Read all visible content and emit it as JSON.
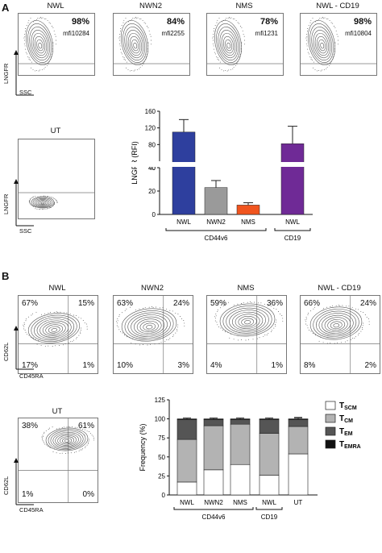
{
  "panel_a": {
    "letter": "A",
    "plots": [
      {
        "title": "NWL",
        "percent": "98%",
        "mfi": "mfi10284"
      },
      {
        "title": "NWN2",
        "percent": "84%",
        "mfi": "mfi2255"
      },
      {
        "title": "NMS",
        "percent": "78%",
        "mfi": "mfi1231"
      },
      {
        "title": "NWL - CD19",
        "percent": "98%",
        "mfi": "mfi10804"
      }
    ],
    "ut_title": "UT",
    "y_axis": "LNGFR",
    "x_axis": "SSC"
  },
  "panel_b": {
    "letter": "B",
    "plots": [
      {
        "title": "NWL",
        "q_ul": "67%",
        "q_ur": "15%",
        "q_ll": "17%",
        "q_lr": "1%"
      },
      {
        "title": "NWN2",
        "q_ul": "63%",
        "q_ur": "24%",
        "q_ll": "10%",
        "q_lr": "3%"
      },
      {
        "title": "NMS",
        "q_ul": "59%",
        "q_ur": "36%",
        "q_ll": "4%",
        "q_lr": "1%"
      },
      {
        "title": "NWL - CD19",
        "q_ul": "66%",
        "q_ur": "24%",
        "q_ll": "8%",
        "q_lr": "2%"
      }
    ],
    "ut": {
      "title": "UT",
      "q_ul": "38%",
      "q_ur": "61%",
      "q_ll": "1%",
      "q_lr": "0%"
    },
    "y_axis": "CD62L",
    "x_axis": "CD45RA"
  },
  "chart_data": [
    {
      "type": "bar",
      "ylabel": "LNGFR (RFI)",
      "categories": [
        "NWL",
        "NWN2",
        "NMS",
        "NWL"
      ],
      "values": [
        110,
        23,
        8,
        82
      ],
      "errors": [
        30,
        6,
        2,
        42
      ],
      "colors": [
        "#2e3f9e",
        "#9a9a9a",
        "#f0541e",
        "#6f2a96"
      ],
      "y_ticks_lower": [
        0,
        20,
        40
      ],
      "y_ticks_upper": [
        40,
        80,
        120,
        160
      ],
      "axis_break": [
        40,
        50
      ],
      "groups": [
        {
          "label": "CD44v6",
          "members": [
            0,
            1,
            2
          ]
        },
        {
          "label": "CD19",
          "members": [
            3
          ]
        }
      ]
    },
    {
      "type": "bar",
      "stacked": true,
      "ylabel": "Frequency (%)",
      "ylim": [
        0,
        125
      ],
      "y_ticks": [
        0,
        25,
        50,
        75,
        100,
        125
      ],
      "categories": [
        "NWL",
        "NWN2",
        "NMS",
        "NWL",
        "UT"
      ],
      "series": [
        {
          "name": "T",
          "sub": "SCM",
          "color": "#ffffff",
          "values": [
            17,
            33,
            40,
            26,
            54
          ],
          "errors": [
            2,
            3,
            6,
            4,
            3
          ]
        },
        {
          "name": "T",
          "sub": "CM",
          "color": "#b3b3b3",
          "values": [
            56,
            58,
            53,
            55,
            36
          ],
          "errors": [
            2,
            2,
            2,
            3,
            2
          ]
        },
        {
          "name": "T",
          "sub": "EM",
          "color": "#555555",
          "values": [
            26,
            8,
            6,
            18,
            9
          ],
          "errors": [
            2,
            2,
            2,
            2,
            3
          ]
        },
        {
          "name": "T",
          "sub": "EMRA",
          "color": "#111111",
          "values": [
            1,
            1,
            1,
            1,
            1
          ],
          "errors": [
            1,
            1,
            1,
            1,
            1
          ]
        }
      ],
      "groups": [
        {
          "label": "CD44v6",
          "members": [
            0,
            1,
            2
          ]
        },
        {
          "label": "CD19",
          "members": [
            3
          ]
        }
      ],
      "legend": "right"
    }
  ]
}
